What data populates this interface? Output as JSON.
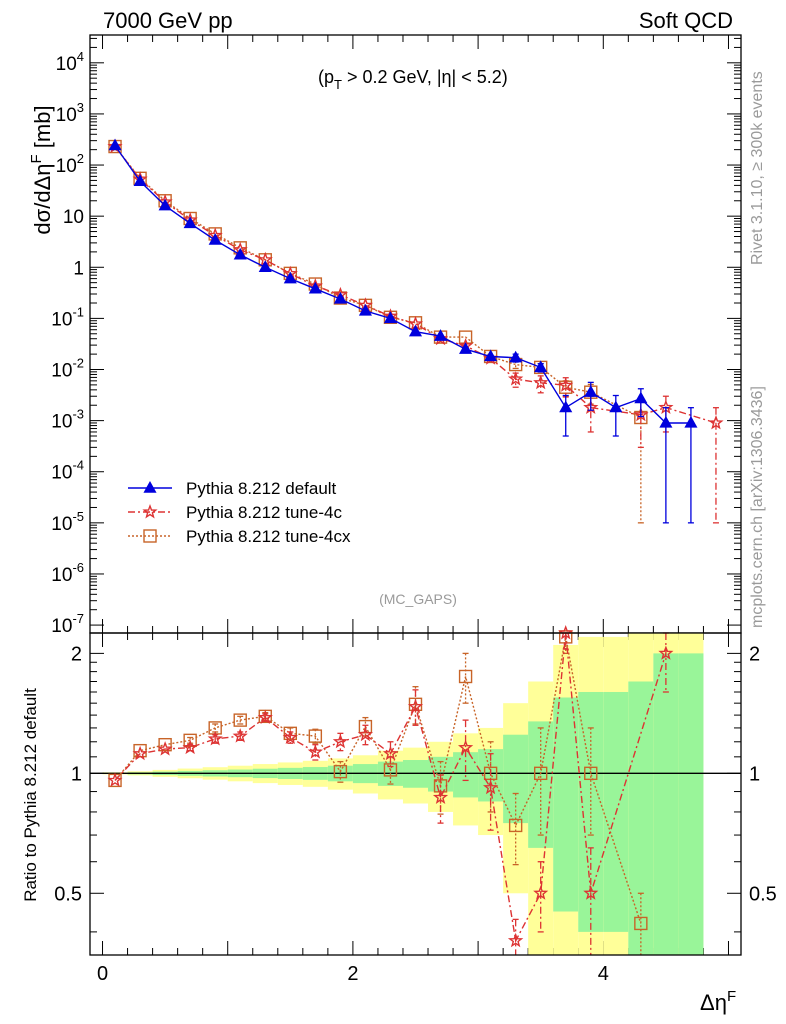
{
  "header": {
    "left": "7000 GeV pp",
    "right": "Soft QCD"
  },
  "cuts": "(p_T > 0.2 GeV, |η| < 5.2)",
  "analysis": "(MC_GAPS)",
  "side_labels": {
    "top": "Rivet 3.1.10, ≥ 300k events",
    "bottom": "mcplots.cern.ch [arXiv:1306.3436]"
  },
  "colors": {
    "default": "#0000dd",
    "tune4c": "#dd3333",
    "tune4cx": "#c86428",
    "band_green": "#99f599",
    "band_yellow": "#ffff99"
  },
  "chart_data": [
    {
      "type": "line",
      "title": "",
      "xlabel": "Δη^F",
      "ylabel": "dσ/dΔη^F [mb]",
      "yscale": "log",
      "xlim": [
        -0.1,
        5.1
      ],
      "ylim": [
        7e-08,
        35000
      ],
      "legend_position": "middle-left",
      "yticks": [
        "10^-7",
        "10^-6",
        "10^-5",
        "10^-4",
        "10^-3",
        "10^-2",
        "10^-1",
        "1",
        "10",
        "10^2",
        "10^3",
        "10^4"
      ],
      "series": [
        {
          "name": "Pythia 8.212 default",
          "key": "default",
          "x": [
            0.1,
            0.3,
            0.5,
            0.7,
            0.9,
            1.1,
            1.3,
            1.5,
            1.7,
            1.9,
            2.1,
            2.3,
            2.5,
            2.7,
            2.9,
            3.1,
            3.3,
            3.5,
            3.7,
            3.9,
            4.1,
            4.3,
            4.5,
            4.7
          ],
          "y": [
            240,
            48,
            16,
            7.2,
            3.4,
            1.75,
            1.0,
            0.6,
            0.38,
            0.24,
            0.14,
            0.1,
            0.055,
            0.045,
            0.025,
            0.018,
            0.017,
            0.011,
            0.0018,
            0.0036,
            0.0018,
            0.0027,
            0.0009,
            0.0009
          ],
          "err": [
            0,
            0,
            0,
            0,
            0,
            0,
            0,
            0,
            0,
            0,
            0,
            0,
            0,
            0,
            0,
            0,
            0.003,
            0.002,
            0.0013,
            0.002,
            0.0013,
            0.0015,
            0.00089,
            0.00089
          ]
        },
        {
          "name": "Pythia 8.212 tune-4c",
          "key": "tune4c",
          "x": [
            0.1,
            0.3,
            0.5,
            0.7,
            0.9,
            1.1,
            1.3,
            1.5,
            1.7,
            1.9,
            2.1,
            2.3,
            2.5,
            2.7,
            2.9,
            3.1,
            3.3,
            3.5,
            3.7,
            3.9,
            4.3,
            4.5,
            4.9
          ],
          "y": [
            230,
            53,
            19,
            8.4,
            4.2,
            2.2,
            1.4,
            0.75,
            0.43,
            0.29,
            0.18,
            0.11,
            0.078,
            0.04,
            0.029,
            0.0165,
            0.0065,
            0.0055,
            0.0049,
            0.0018,
            0.0013,
            0.0018,
            0.0009
          ],
          "err": [
            0,
            0,
            0,
            0,
            0,
            0,
            0,
            0,
            0,
            0,
            0,
            0,
            0,
            0,
            0,
            0,
            0.002,
            0.002,
            0.002,
            0.0012,
            0.001,
            0.0012,
            0.00089
          ]
        },
        {
          "name": "Pythia 8.212 tune-4cx",
          "key": "tune4cx",
          "x": [
            0.1,
            0.3,
            0.5,
            0.7,
            0.9,
            1.1,
            1.3,
            1.5,
            1.7,
            1.9,
            2.1,
            2.3,
            2.5,
            2.7,
            2.9,
            3.1,
            3.3,
            3.5,
            3.7,
            3.9,
            4.3
          ],
          "y": [
            230,
            55,
            20,
            9.0,
            4.5,
            2.4,
            1.4,
            0.76,
            0.47,
            0.25,
            0.18,
            0.105,
            0.082,
            0.043,
            0.043,
            0.018,
            0.0125,
            0.011,
            0.0045,
            0.0036,
            0.00115
          ],
          "err": [
            0,
            0,
            0,
            0,
            0,
            0,
            0,
            0,
            0,
            0,
            0,
            0,
            0,
            0,
            0,
            0,
            0.002,
            0.002,
            0.0015,
            0.0015,
            0.00114
          ]
        }
      ]
    },
    {
      "type": "line",
      "title": "",
      "xlabel": "Δη^F",
      "ylabel": "Ratio to Pythia 8.212 default",
      "xlim": [
        -0.1,
        5.1
      ],
      "ylim": [
        0.35,
        2.25
      ],
      "xticks": [
        0,
        2,
        4
      ],
      "yticks": [
        0.5,
        1,
        2
      ],
      "reference_line": 1,
      "bands": {
        "edges": [
          0,
          0.2,
          0.4,
          0.6,
          0.8,
          1.0,
          1.2,
          1.4,
          1.6,
          1.8,
          2.0,
          2.2,
          2.4,
          2.6,
          2.8,
          3.0,
          3.2,
          3.4,
          3.6,
          3.8,
          4.0,
          4.2,
          4.4,
          4.6,
          4.8
        ],
        "green_half": [
          0.003,
          0.006,
          0.01,
          0.014,
          0.018,
          0.022,
          0.027,
          0.032,
          0.037,
          0.045,
          0.055,
          0.07,
          0.08,
          0.1,
          0.13,
          0.15,
          0.25,
          0.35,
          0.55,
          0.6,
          0.6,
          0.7,
          1.0,
          1.0
        ],
        "yellow_half": [
          0.006,
          0.012,
          0.02,
          0.028,
          0.036,
          0.045,
          0.055,
          0.065,
          0.075,
          0.09,
          0.11,
          0.14,
          0.16,
          0.2,
          0.26,
          0.3,
          0.5,
          0.7,
          1.1,
          1.2,
          1.2,
          1.4,
          2.0,
          2.0
        ]
      },
      "series": [
        {
          "name": "Pythia 8.212 tune-4c",
          "key": "tune4c",
          "x": [
            0.1,
            0.3,
            0.5,
            0.7,
            0.9,
            1.1,
            1.3,
            1.5,
            1.7,
            1.9,
            2.1,
            2.3,
            2.5,
            2.7,
            2.9,
            3.1,
            3.3,
            3.5,
            3.7,
            3.9,
            4.5
          ],
          "y": [
            0.96,
            1.12,
            1.15,
            1.16,
            1.22,
            1.24,
            1.38,
            1.23,
            1.13,
            1.2,
            1.25,
            1.12,
            1.47,
            0.87,
            1.16,
            0.92,
            0.38,
            0.5,
            2.25,
            0.5,
            2.0
          ],
          "err": [
            0,
            0,
            0,
            0.02,
            0.03,
            0.03,
            0.03,
            0.04,
            0.05,
            0.06,
            0.07,
            0.08,
            0.15,
            0.12,
            0.2,
            0.2,
            0.05,
            0.1,
            0.2,
            0.15,
            0.4
          ]
        },
        {
          "name": "Pythia 8.212 tune-4cx",
          "key": "tune4cx",
          "x": [
            0.1,
            0.3,
            0.5,
            0.7,
            0.9,
            1.1,
            1.3,
            1.5,
            1.7,
            1.9,
            2.1,
            2.3,
            2.5,
            2.7,
            2.9,
            3.1,
            3.3,
            3.5,
            3.7,
            3.9,
            4.3
          ],
          "y": [
            0.96,
            1.14,
            1.18,
            1.21,
            1.3,
            1.36,
            1.39,
            1.26,
            1.24,
            1.01,
            1.31,
            1.02,
            1.49,
            0.93,
            1.75,
            1.0,
            0.74,
            1.0,
            2.2,
            1.0,
            0.42
          ],
          "err": [
            0,
            0,
            0,
            0.02,
            0.03,
            0.03,
            0.03,
            0.04,
            0.05,
            0.06,
            0.07,
            0.08,
            0.16,
            0.14,
            0.25,
            0.2,
            0.15,
            0.3,
            0.2,
            0.3,
            0.08
          ]
        }
      ]
    }
  ]
}
